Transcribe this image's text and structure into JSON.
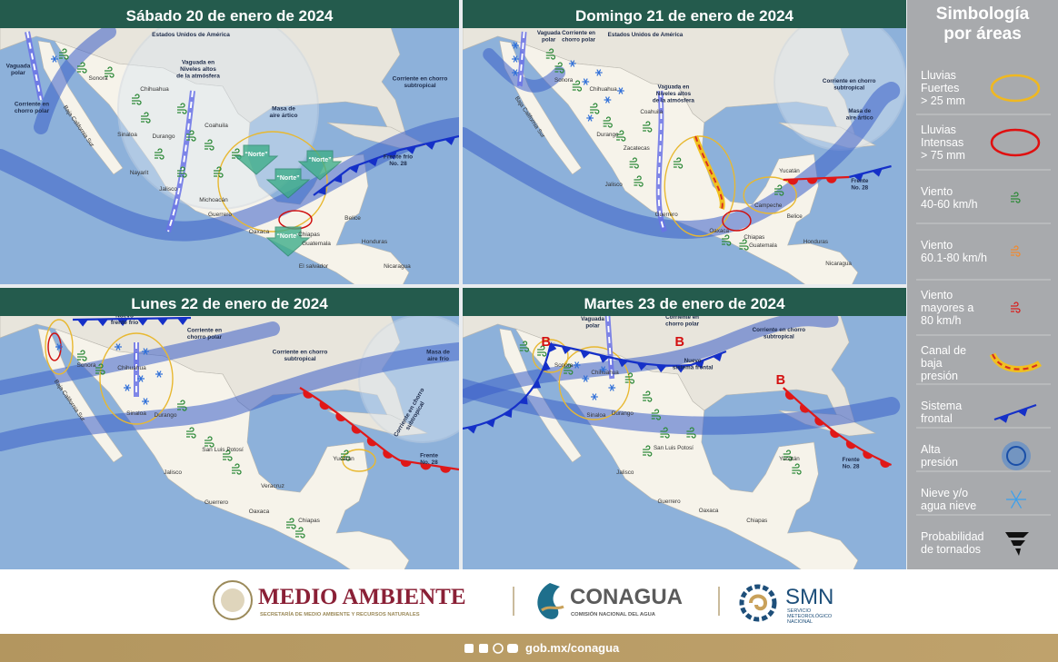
{
  "panels": [
    {
      "title": "Sábado 20 de enero de 2024",
      "labels": [
        [
          "Vaguada",
          "polar"
        ],
        [
          "Corriente en",
          "chorro polar"
        ],
        "Estados Unidos de América",
        [
          "Vaguada en",
          "Niveles altos",
          "de la atmósfera"
        ],
        [
          "Masa de",
          "aire ártico"
        ],
        [
          "Corriente en chorro",
          "subtropical"
        ],
        [
          "Frente frío",
          "No. 28"
        ],
        "Sonora",
        "Chihuahua",
        "Coahuila",
        "Sinaloa",
        "Durango",
        "Nayarit",
        "Jalisco",
        "Michoacán",
        "Guerrero",
        "Oaxaca",
        "Chiapas",
        "Belice",
        "Guatemala",
        "Honduras",
        "El salvador",
        "Nicaragua",
        "Baja California Sur"
      ],
      "winds_from_north": [
        "“Norte”",
        "“Norte”",
        "“Norte”",
        "“Norte”"
      ]
    },
    {
      "title": "Domingo 21 de enero de 2024",
      "labels": [
        [
          "Vaguada",
          "polar"
        ],
        [
          "Corriente en",
          "chorro polar"
        ],
        "Estados Unidos de América",
        [
          "Vaguada en",
          "Niveles altos",
          "de la atmósfera"
        ],
        [
          "Corriente en chorro",
          "subtropical"
        ],
        [
          "Masa de",
          "aire ártico"
        ],
        [
          "Frente",
          "No. 28"
        ],
        "Sonora",
        "Chihuahua",
        "Coahuila",
        "Durango",
        "Zacatecas",
        "Jalisco",
        "Guerrero",
        "Oaxaca",
        "Chiapas",
        "Yucatán",
        "Campeche",
        "Belice",
        "Guatemala",
        "Honduras",
        "Nicaragua",
        "Baja California Sur"
      ]
    },
    {
      "title": "Lunes 22 de enero de 2024",
      "labels": [
        [
          "Nuevo",
          "frente frío"
        ],
        [
          "Corriente en",
          "chorro polar"
        ],
        [
          "Corriente en chorro",
          "subtropical"
        ],
        [
          "Masa de",
          "aire frío"
        ],
        [
          "Corriente en chorro",
          "subtropical"
        ],
        [
          "Frente",
          "No. 28"
        ],
        "Sonora",
        "Chihuahua",
        "Sinaloa",
        "Durango",
        "San Luis Potosí",
        "Jalisco",
        "Veracruz",
        "Guerrero",
        "Oaxaca",
        "Chiapas",
        "Yucatán",
        "Baja California Sur"
      ]
    },
    {
      "title": "Martes 23 de enero de 2024",
      "labels": [
        [
          "Vaguada",
          "polar"
        ],
        [
          "Corriente en",
          "chorro polar"
        ],
        [
          "Corriente en chorro",
          "subtropical"
        ],
        [
          "Nuevo",
          "sistema frontal"
        ],
        [
          "Frente",
          "No. 28"
        ],
        "Sonora",
        "Chihuahua",
        "Sinaloa",
        "Durango",
        "San Luis Potosí",
        "Jalisco",
        "Guerrero",
        "Oaxaca",
        "Chiapas",
        "Yucatán"
      ],
      "low_pressure": [
        "B",
        "B",
        "B"
      ]
    }
  ],
  "legend": {
    "title": [
      "Simbología",
      "por áreas"
    ],
    "items": [
      [
        "Lluvias",
        "Fuertes",
        "> 25 mm"
      ],
      [
        "Lluvias",
        "Intensas",
        "> 75 mm"
      ],
      [
        "Viento",
        "40-60 km/h"
      ],
      [
        "Viento",
        "60.1-80 km/h"
      ],
      [
        "Viento",
        "mayores a",
        "80 km/h"
      ],
      [
        "Canal de",
        "baja",
        "presión"
      ],
      [
        "Sistema",
        "frontal"
      ],
      [
        "Alta",
        "presión"
      ],
      [
        "Nieve y/o",
        "agua nieve"
      ],
      [
        "Probabilidad",
        "de tornados"
      ]
    ]
  },
  "footer": {
    "semarnat": "MEDIO AMBIENTE",
    "semarnat_sub": "SECRETARÍA DE MEDIO AMBIENTE Y RECURSOS NATURALES",
    "conagua": "CONAGUA",
    "conagua_sub": "COMISIÓN NACIONAL DEL AGUA",
    "smn": "SMN",
    "smn_sub": [
      "SERVICIO",
      "METEOROLÓGICO",
      "NACIONAL"
    ],
    "url": "gob.mx/conagua"
  }
}
